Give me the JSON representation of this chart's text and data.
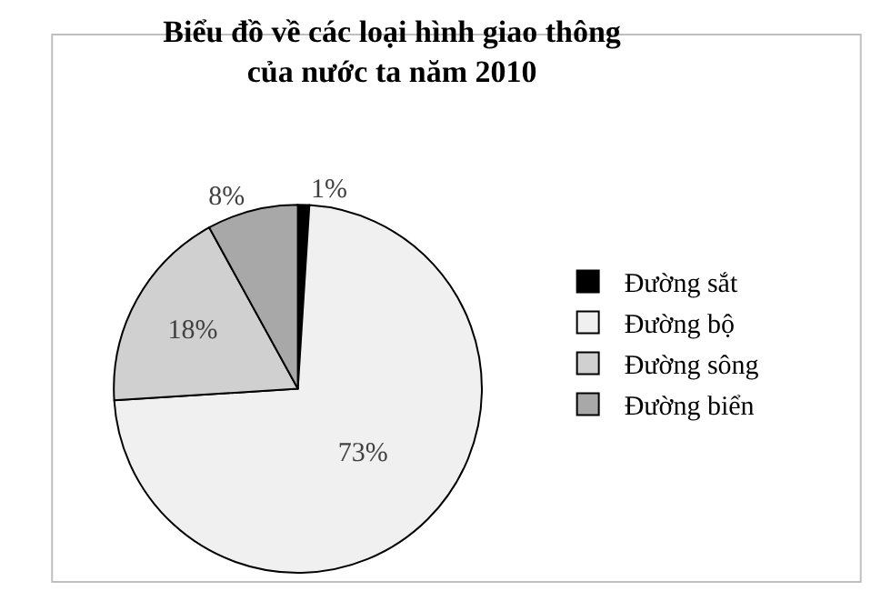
{
  "chart_data": {
    "type": "pie",
    "title": "Biểu đồ về các loại hình giao thông\ncủa nước ta năm 2010",
    "categories": [
      "Đường sắt",
      "Đường bộ",
      "Đường sông",
      "Đường biển"
    ],
    "values": [
      1,
      73,
      18,
      8
    ],
    "colors": [
      "#000000",
      "#f0f0f0",
      "#d0d0d0",
      "#a8a8a8"
    ],
    "value_labels": [
      "1%",
      "73%",
      "18%",
      "8%"
    ],
    "legend": "right"
  }
}
